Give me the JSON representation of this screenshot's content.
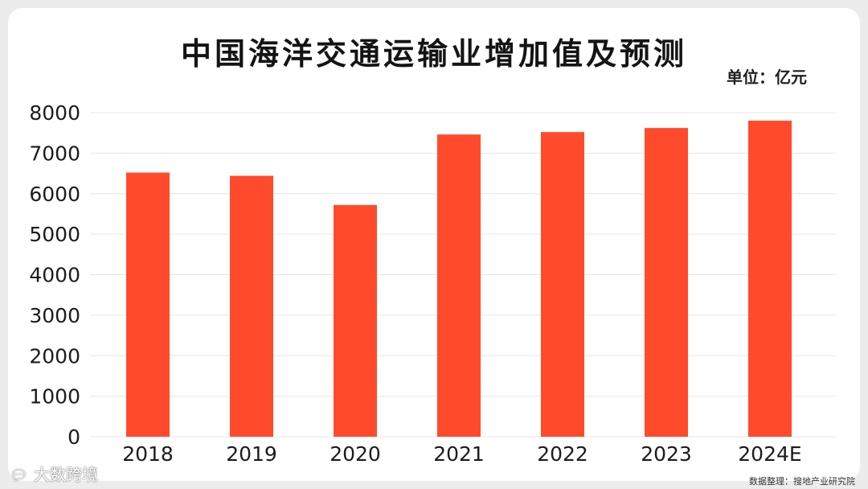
{
  "title": "中国海洋交通运输业增加值及预测",
  "unit": "单位：亿元",
  "source": "数据整理：搜地产业研究院",
  "brand": "大数跨境",
  "brand_icon": "chat-bubble-icon",
  "colors": {
    "bar": "#ff4b2b",
    "grid": "#e6e6e6",
    "tick": "#1c1c1c",
    "title": "#141414"
  },
  "chart_data": {
    "type": "bar",
    "categories": [
      "2018",
      "2019",
      "2020",
      "2021",
      "2022",
      "2023",
      "2024E"
    ],
    "values": [
      6520,
      6440,
      5720,
      7460,
      7520,
      7620,
      7800
    ],
    "ylim": [
      0,
      8000
    ],
    "yticks": [
      0,
      1000,
      2000,
      3000,
      4000,
      5000,
      6000,
      7000,
      8000
    ],
    "grid": true,
    "title": "中国海洋交通运输业增加值及预测",
    "xlabel": "",
    "ylabel": ""
  }
}
